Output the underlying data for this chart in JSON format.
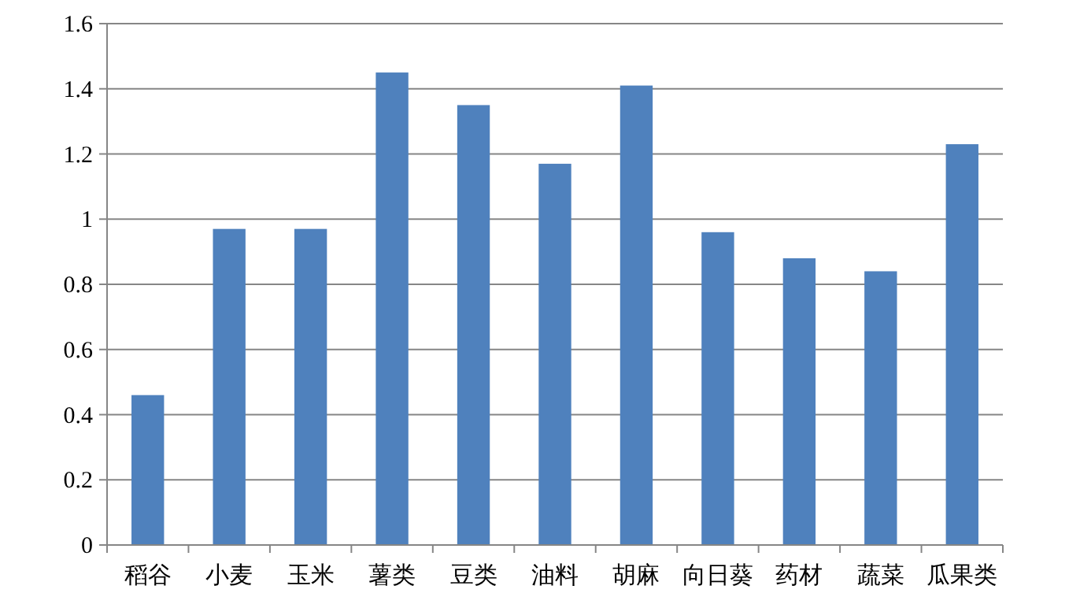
{
  "chart_data": {
    "type": "bar",
    "categories": [
      "稻谷",
      "小麦",
      "玉米",
      "薯类",
      "豆类",
      "油料",
      "胡麻",
      "向日葵",
      "药材",
      "蔬菜",
      "瓜果类"
    ],
    "values": [
      0.46,
      0.97,
      0.97,
      1.45,
      1.35,
      1.17,
      1.41,
      0.96,
      0.88,
      0.84,
      1.23
    ],
    "color": "#4f81bd",
    "ylim": [
      0,
      1.6
    ],
    "yticks": [
      0,
      0.2,
      0.4,
      0.6,
      0.8,
      1,
      1.2,
      1.4,
      1.6
    ],
    "grid": "y"
  }
}
